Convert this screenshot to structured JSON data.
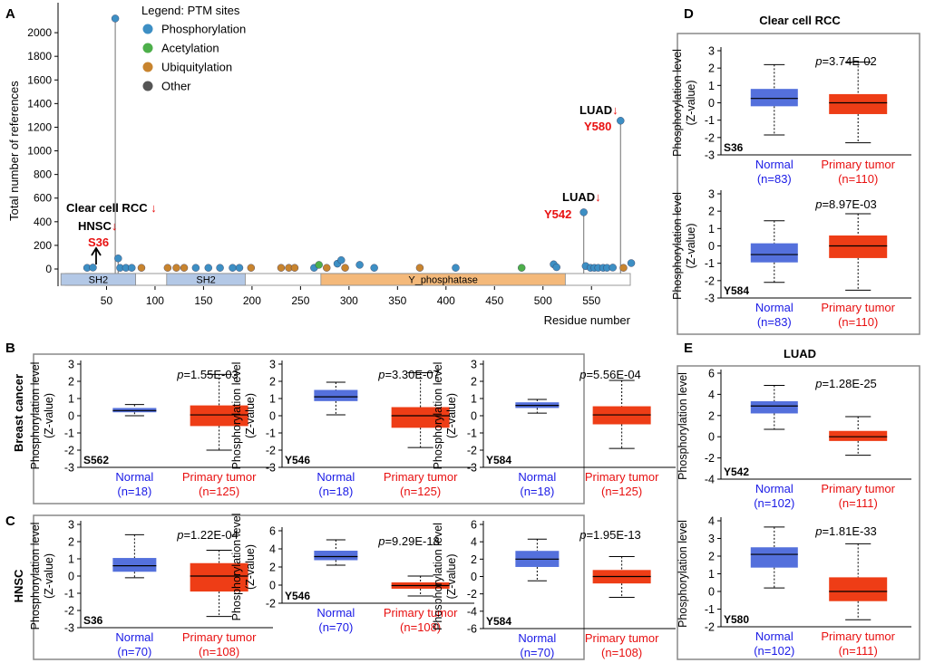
{
  "colors": {
    "phospho": "#3d8fc4",
    "acetyl": "#4daf4a",
    "ubiq": "#c8842e",
    "other": "#555555",
    "normal_fill": "#5470dc",
    "tumor_fill": "#ee3d16",
    "normal_text": "#1a1ae6",
    "tumor_text": "#e81010",
    "domain_sh2": "#b3c8e6",
    "domain_yp": "#f4b97a",
    "panel_border": "#888888"
  },
  "panel_a": {
    "letter": "A",
    "legend": {
      "title": "Legend: PTM sites",
      "items": [
        {
          "label": "Phosphorylation",
          "type": "phospho"
        },
        {
          "label": "Acetylation",
          "type": "acetyl"
        },
        {
          "label": "Ubiquitylation",
          "type": "ubiq"
        },
        {
          "label": "Other",
          "type": "other"
        }
      ]
    },
    "annotations": {
      "rcc": "Clear cell RCC",
      "hnsc": "HNSC",
      "s36": "S36",
      "luad_1": "LUAD",
      "y542": "Y542",
      "luad_2": "LUAD",
      "y580": "Y580",
      "arrow_down": "↓"
    }
  },
  "chart_data": [
    {
      "id": "lollipop",
      "type": "scatter",
      "title": "",
      "xlabel": "Residue number",
      "ylabel": "Total number of references",
      "xlim": [
        0,
        590
      ],
      "ylim": [
        0,
        2200
      ],
      "x_ticks": [
        "50",
        "100",
        "150",
        "200",
        "250",
        "300",
        "350",
        "400",
        "450",
        "500",
        "550"
      ],
      "y_ticks": [
        "0",
        "200",
        "400",
        "600",
        "800",
        "1000",
        "1200",
        "1400",
        "1600",
        "1800",
        "2000"
      ],
      "domains": [
        {
          "name": "SH2",
          "start": 3,
          "end": 80
        },
        {
          "name": "SH2",
          "start": 112,
          "end": 193
        },
        {
          "name": "Y_phosphatase",
          "start": 271,
          "end": 523
        }
      ],
      "points": [
        {
          "x": 30,
          "y": 10,
          "t": "phospho"
        },
        {
          "x": 36,
          "y": 12,
          "t": "phospho"
        },
        {
          "x": 59,
          "y": 2120,
          "t": "phospho",
          "stem": true
        },
        {
          "x": 62,
          "y": 90,
          "t": "phospho",
          "stem": true
        },
        {
          "x": 64,
          "y": 10,
          "t": "phospho"
        },
        {
          "x": 70,
          "y": 10,
          "t": "phospho"
        },
        {
          "x": 76,
          "y": 10,
          "t": "phospho"
        },
        {
          "x": 86,
          "y": 10,
          "t": "ubiq"
        },
        {
          "x": 113,
          "y": 10,
          "t": "ubiq"
        },
        {
          "x": 122,
          "y": 10,
          "t": "ubiq"
        },
        {
          "x": 130,
          "y": 10,
          "t": "ubiq"
        },
        {
          "x": 142,
          "y": 10,
          "t": "phospho"
        },
        {
          "x": 155,
          "y": 10,
          "t": "phospho"
        },
        {
          "x": 167,
          "y": 10,
          "t": "phospho"
        },
        {
          "x": 180,
          "y": 10,
          "t": "phospho"
        },
        {
          "x": 187,
          "y": 10,
          "t": "phospho"
        },
        {
          "x": 199,
          "y": 10,
          "t": "ubiq"
        },
        {
          "x": 230,
          "y": 10,
          "t": "ubiq"
        },
        {
          "x": 238,
          "y": 10,
          "t": "ubiq"
        },
        {
          "x": 244,
          "y": 10,
          "t": "ubiq"
        },
        {
          "x": 264,
          "y": 10,
          "t": "phospho"
        },
        {
          "x": 269,
          "y": 35,
          "t": "acetyl"
        },
        {
          "x": 277,
          "y": 10,
          "t": "ubiq"
        },
        {
          "x": 288,
          "y": 45,
          "t": "phospho"
        },
        {
          "x": 292,
          "y": 75,
          "t": "phospho"
        },
        {
          "x": 296,
          "y": 10,
          "t": "ubiq"
        },
        {
          "x": 311,
          "y": 35,
          "t": "phospho"
        },
        {
          "x": 326,
          "y": 10,
          "t": "phospho"
        },
        {
          "x": 373,
          "y": 10,
          "t": "ubiq"
        },
        {
          "x": 410,
          "y": 10,
          "t": "phospho"
        },
        {
          "x": 478,
          "y": 10,
          "t": "acetyl"
        },
        {
          "x": 511,
          "y": 40,
          "t": "phospho"
        },
        {
          "x": 514,
          "y": 15,
          "t": "phospho"
        },
        {
          "x": 542,
          "y": 480,
          "t": "phospho",
          "stem": true
        },
        {
          "x": 544,
          "y": 25,
          "t": "phospho"
        },
        {
          "x": 549,
          "y": 10,
          "t": "phospho"
        },
        {
          "x": 553,
          "y": 10,
          "t": "phospho"
        },
        {
          "x": 557,
          "y": 10,
          "t": "phospho"
        },
        {
          "x": 562,
          "y": 10,
          "t": "phospho"
        },
        {
          "x": 566,
          "y": 10,
          "t": "phospho"
        },
        {
          "x": 572,
          "y": 12,
          "t": "phospho"
        },
        {
          "x": 580,
          "y": 1255,
          "t": "phospho",
          "stem": true
        },
        {
          "x": 583,
          "y": 10,
          "t": "ubiq"
        },
        {
          "x": 591,
          "y": 50,
          "t": "phospho"
        }
      ]
    },
    {
      "id": "B1",
      "type": "box",
      "panel": "B",
      "site": "S562",
      "p_prefix": "p",
      "p_value": "=1.55E-03",
      "ylim": [
        -3,
        3
      ],
      "y_ticks": [
        "3",
        "2",
        "1",
        "0",
        "-1",
        "-2",
        "-3"
      ],
      "groups": [
        {
          "name": "Normal",
          "n": "(n=18)",
          "whislo": 0.0,
          "q1": 0.2,
          "med": 0.3,
          "q3": 0.45,
          "whishi": 0.65
        },
        {
          "name": "Primary tumor",
          "n": "(n=125)",
          "whislo": -2.0,
          "q1": -0.6,
          "med": 0.05,
          "q3": 0.6,
          "whishi": 2.4
        }
      ]
    },
    {
      "id": "B2",
      "type": "box",
      "panel": "B",
      "site": "Y546",
      "p_prefix": "p",
      "p_value": "=3.30E-07",
      "ylim": [
        -3,
        3
      ],
      "y_ticks": [
        "3",
        "2",
        "1",
        "0",
        "-1",
        "-2",
        "-3"
      ],
      "groups": [
        {
          "name": "Normal",
          "n": "(n=18)",
          "whislo": 0.05,
          "q1": 0.85,
          "med": 1.1,
          "q3": 1.5,
          "whishi": 1.95
        },
        {
          "name": "Primary tumor",
          "n": "(n=125)",
          "whislo": -1.85,
          "q1": -0.7,
          "med": 0.0,
          "q3": 0.5,
          "whishi": 2.5
        }
      ]
    },
    {
      "id": "B3",
      "type": "box",
      "panel": "B",
      "site": "Y584",
      "p_prefix": "p",
      "p_value": "=5.56E-04",
      "ylim": [
        -3,
        3
      ],
      "y_ticks": [
        "3",
        "2",
        "1",
        "0",
        "-1",
        "-2",
        "-3"
      ],
      "groups": [
        {
          "name": "Normal",
          "n": "(n=18)",
          "whislo": 0.15,
          "q1": 0.45,
          "med": 0.6,
          "q3": 0.78,
          "whishi": 0.95
        },
        {
          "name": "Primary tumor",
          "n": "(n=125)",
          "whislo": -1.9,
          "q1": -0.5,
          "med": 0.05,
          "q3": 0.55,
          "whishi": 2.05
        }
      ]
    },
    {
      "id": "C1",
      "type": "box",
      "panel": "C",
      "site": "S36",
      "p_prefix": "p",
      "p_value": "=1.22E-04",
      "ylim": [
        -3,
        3
      ],
      "y_ticks": [
        "3",
        "2",
        "1",
        "0",
        "-1",
        "-2",
        "-3"
      ],
      "groups": [
        {
          "name": "Normal",
          "n": "(n=70)",
          "whislo": -0.1,
          "q1": 0.25,
          "med": 0.6,
          "q3": 1.05,
          "whishi": 2.4
        },
        {
          "name": "Primary tumor",
          "n": "(n=108)",
          "whislo": -2.35,
          "q1": -0.9,
          "med": 0.0,
          "q3": 0.75,
          "whishi": 1.5
        }
      ]
    },
    {
      "id": "C2",
      "type": "box",
      "panel": "C",
      "site": "Y546",
      "p_prefix": "p",
      "p_value": "=9.29E-18",
      "ylim": [
        -2,
        6
      ],
      "y_ticks": [
        "6",
        "4",
        "2",
        "0",
        "-2"
      ],
      "groups": [
        {
          "name": "Normal",
          "n": "(n=70)",
          "whislo": 2.2,
          "q1": 2.75,
          "med": 3.15,
          "q3": 3.8,
          "whishi": 5.0
        },
        {
          "name": "Primary tumor",
          "n": "(n=108)",
          "whislo": -1.2,
          "q1": -0.4,
          "med": -0.05,
          "q3": 0.3,
          "whishi": 1.0
        }
      ]
    },
    {
      "id": "C3",
      "type": "box",
      "panel": "C",
      "site": "Y584",
      "p_prefix": "p",
      "p_value": "=1.95E-13",
      "ylim": [
        -6,
        6
      ],
      "y_ticks": [
        "6",
        "4",
        "2",
        "0",
        "-2",
        "-4",
        "-6"
      ],
      "groups": [
        {
          "name": "Normal",
          "n": "(n=70)",
          "whislo": -0.5,
          "q1": 1.1,
          "med": 2.0,
          "q3": 2.95,
          "whishi": 4.3
        },
        {
          "name": "Primary tumor",
          "n": "(n=108)",
          "whislo": -2.4,
          "q1": -0.8,
          "med": 0.0,
          "q3": 0.75,
          "whishi": 2.3
        }
      ]
    },
    {
      "id": "D1",
      "type": "box",
      "panel": "D",
      "site": "S36",
      "p_prefix": "p",
      "p_value": "=3.74E-02",
      "ylim": [
        -3,
        3
      ],
      "y_ticks": [
        "3",
        "2",
        "1",
        "0",
        "-1",
        "-2",
        "-3"
      ],
      "groups": [
        {
          "name": "Normal",
          "n": "(n=83)",
          "whislo": -1.85,
          "q1": -0.2,
          "med": 0.25,
          "q3": 0.8,
          "whishi": 2.2
        },
        {
          "name": "Primary tumor",
          "n": "(n=110)",
          "whislo": -2.3,
          "q1": -0.65,
          "med": 0.0,
          "q3": 0.5,
          "whishi": 2.35
        }
      ]
    },
    {
      "id": "D2",
      "type": "box",
      "panel": "D",
      "site": "Y584",
      "p_prefix": "p",
      "p_value": "=8.97E-03",
      "ylim": [
        -3,
        3
      ],
      "y_ticks": [
        "3",
        "2",
        "1",
        "0",
        "-1",
        "-2",
        "-3"
      ],
      "groups": [
        {
          "name": "Normal",
          "n": "(n=83)",
          "whislo": -2.1,
          "q1": -0.95,
          "med": -0.5,
          "q3": 0.15,
          "whishi": 1.45
        },
        {
          "name": "Primary tumor",
          "n": "(n=110)",
          "whislo": -2.55,
          "q1": -0.7,
          "med": 0.0,
          "q3": 0.6,
          "whishi": 1.85
        }
      ]
    },
    {
      "id": "E1",
      "type": "box",
      "panel": "E",
      "site": "Y542",
      "p_prefix": "p",
      "p_value": "=1.28E-25",
      "ylim": [
        -4,
        6
      ],
      "y_ticks": [
        "6",
        "4",
        "2",
        "0",
        "-2",
        "-4"
      ],
      "groups": [
        {
          "name": "Normal",
          "n": "(n=102)",
          "whislo": 0.7,
          "q1": 2.2,
          "med": 2.9,
          "q3": 3.35,
          "whishi": 4.85
        },
        {
          "name": "Primary tumor",
          "n": "(n=111)",
          "whislo": -1.75,
          "q1": -0.4,
          "med": 0.0,
          "q3": 0.55,
          "whishi": 1.9
        }
      ]
    },
    {
      "id": "E2",
      "type": "box",
      "panel": "E",
      "site": "Y580",
      "p_prefix": "p",
      "p_value": "=1.81E-33",
      "ylim": [
        -2,
        4
      ],
      "y_ticks": [
        "4",
        "3",
        "2",
        "1",
        "0",
        "-1",
        "-2"
      ],
      "groups": [
        {
          "name": "Normal",
          "n": "(n=102)",
          "whislo": 0.2,
          "q1": 1.35,
          "med": 2.1,
          "q3": 2.5,
          "whishi": 3.65
        },
        {
          "name": "Primary tumor",
          "n": "(n=111)",
          "whislo": -1.6,
          "q1": -0.55,
          "med": 0.0,
          "q3": 0.8,
          "whishi": 2.7
        }
      ]
    }
  ],
  "panels": {
    "B": {
      "letter": "B",
      "title": "Breast cancer"
    },
    "C": {
      "letter": "C",
      "title": "HNSC"
    },
    "D": {
      "letter": "D",
      "title": "Clear cell RCC"
    },
    "E": {
      "letter": "E",
      "title": "LUAD"
    }
  },
  "common": {
    "ylabel_line1": "Phosphorylation level",
    "ylabel_line2": "(Z-value)"
  }
}
